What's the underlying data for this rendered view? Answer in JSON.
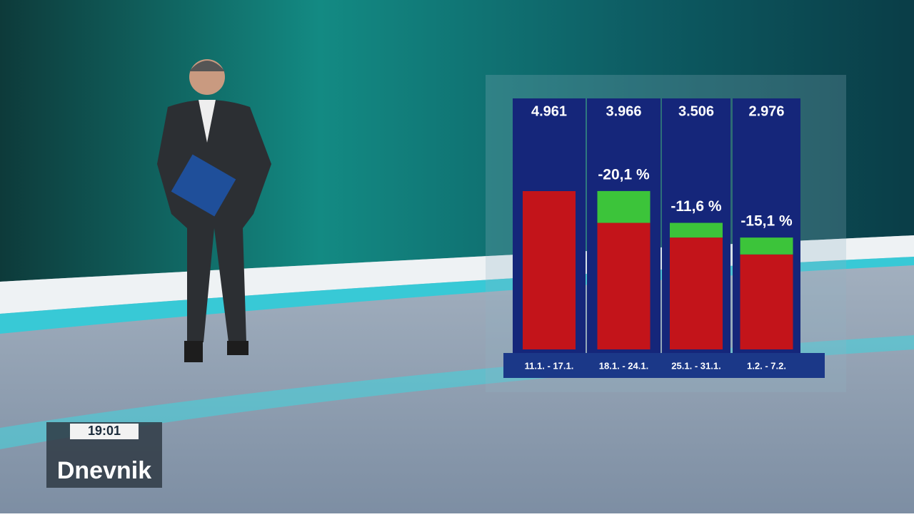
{
  "chart_data": {
    "type": "bar",
    "categories": [
      "11.1. - 17.1.",
      "18.1. - 24.1.",
      "25.1. - 31.1.",
      "1.2. - 7.2."
    ],
    "values": [
      4961,
      3966,
      3506,
      2976
    ],
    "value_labels": [
      "4.961",
      "3.966",
      "3.506",
      "2.976"
    ],
    "color": "#c3141a",
    "changes": [
      null,
      -20.1,
      -11.6,
      -15.1
    ],
    "change_labels": [
      null,
      "-20,1 %",
      "-11,6 %",
      "-15,1 %"
    ],
    "change_color": "#3cc43a"
  },
  "overlay": {
    "time": "19:01",
    "logo": "Dnevnik"
  }
}
